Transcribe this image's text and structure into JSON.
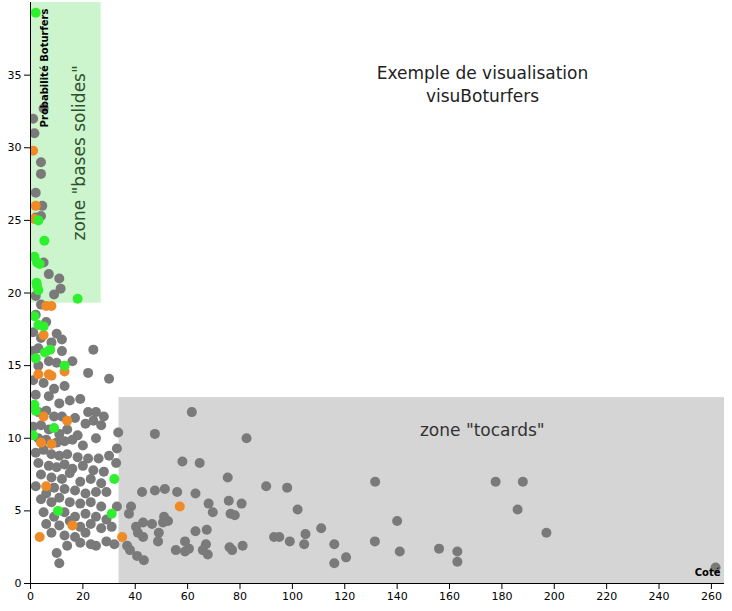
{
  "chart_data": {
    "type": "scatter",
    "title": "Exemple de visualisation",
    "subtitle": "visuBoturfers",
    "x_label": "Coté",
    "y_label": "Probabilité Boturfers",
    "xlim": [
      0,
      265
    ],
    "xticks": [
      0,
      20,
      40,
      60,
      80,
      100,
      120,
      140,
      160,
      180,
      200,
      220,
      240,
      260
    ],
    "ylim": [
      0,
      40
    ],
    "yticks": [
      0,
      5,
      10,
      15,
      20,
      25,
      30,
      35
    ],
    "marker": "circle",
    "zones": [
      {
        "text": "zone \"bases solides\"",
        "x1": 0,
        "x2": 27,
        "y1": 19.3,
        "y2": 40,
        "color": "#cdf5cd"
      },
      {
        "text": "zone \"tocards\"",
        "x1": 33.8,
        "x2": 265,
        "y1": 0,
        "y2": 12.8,
        "color": "#d5d5d5"
      }
    ],
    "series": [
      {
        "color": "#7a7a7a",
        "x": [
          47.5,
          61.6,
          82.5,
          58,
          64.6,
          75.3,
          90,
          98,
          131.6,
          177.6,
          188,
          186,
          197,
          261.6,
          140,
          131.5,
          141,
          156,
          163,
          163,
          116,
          111,
          104.5,
          102,
          105,
          99,
          93,
          95,
          116,
          120.5,
          76.4,
          78,
          75.7,
          80.6,
          76,
          77,
          81,
          69.6,
          67.3,
          67,
          65.8,
          67.7,
          63,
          60.5,
          59,
          55.5,
          48.7,
          51,
          52.5,
          50.6,
          46.4,
          49,
          42.6,
          47.5,
          51.3,
          56,
          63,
          68,
          59,
          43,
          40.3,
          43,
          43.3,
          38.4,
          37.6,
          36.9,
          38,
          40.7,
          41,
          33.5,
          33,
          32.7,
          1,
          5,
          1.5,
          4,
          4,
          2,
          4.5,
          4,
          2,
          11,
          11.5,
          9,
          5,
          7,
          2,
          4,
          2,
          6,
          1,
          4,
          10,
          12,
          8,
          1,
          3,
          12,
          24,
          3,
          7,
          10,
          16,
          1,
          5,
          9,
          13,
          22,
          30,
          2,
          7,
          11,
          15,
          19,
          3,
          6,
          9,
          12,
          17,
          22,
          25,
          28,
          1,
          4,
          7,
          11,
          14,
          18,
          21,
          24,
          27,
          3,
          6,
          10,
          13,
          16,
          20,
          25,
          2,
          5,
          8,
          11,
          14,
          18,
          22,
          26,
          30,
          3,
          7,
          10,
          13,
          16,
          20,
          24,
          28,
          4,
          8,
          12,
          15,
          19,
          23,
          27,
          2,
          6,
          9,
          13,
          17,
          21,
          25,
          29,
          4,
          8,
          11,
          15,
          19,
          23,
          27,
          33,
          5,
          9,
          13,
          17,
          21,
          25,
          29,
          6,
          11,
          15,
          19,
          23,
          27,
          31,
          8,
          13,
          17,
          21,
          25,
          29,
          32,
          10,
          14,
          19,
          23,
          11
        ],
        "values": [
          10.3,
          11.8,
          10.0,
          8.4,
          8.3,
          7.3,
          6.7,
          6.6,
          7.0,
          7.0,
          7.0,
          5.1,
          3.5,
          1.1,
          4.3,
          2.9,
          2.2,
          2.4,
          2.2,
          1.5,
          2.7,
          3.8,
          2.7,
          5.1,
          3.4,
          2.9,
          3.2,
          3.2,
          1.4,
          1.8,
          4.8,
          4.7,
          5.7,
          5.5,
          2.5,
          2.3,
          2.6,
          4.9,
          3.7,
          2.7,
          2.3,
          2.0,
          3.6,
          2.4,
          2.2,
          2.3,
          2.9,
          4.6,
          4.3,
          4.2,
          4.1,
          3.5,
          6.3,
          6.4,
          6.5,
          6.3,
          6.2,
          5.5,
          2.9,
          4.2,
          3.9,
          3.2,
          1.6,
          5.3,
          4.8,
          2.6,
          2.3,
          1.9,
          3.5,
          10.4,
          9.3,
          8.3,
          32,
          32.7,
          31,
          29,
          28.2,
          26.9,
          26,
          25.3,
          25.2,
          21,
          20.3,
          19.9,
          22.1,
          21.3,
          19.8,
          19.2,
          18.5,
          18,
          17.3,
          16.9,
          17.2,
          16.8,
          16.6,
          16,
          16.2,
          16,
          16.1,
          15,
          15.3,
          15.2,
          15.3,
          14,
          13.8,
          13.4,
          13.6,
          14.5,
          14.1,
          13,
          12.9,
          12.4,
          12.6,
          12.7,
          11.8,
          11.9,
          11.5,
          11.5,
          11.4,
          11.8,
          11.8,
          11.5,
          10.8,
          10.9,
          10.6,
          10.3,
          10.6,
          10.2,
          11,
          11.2,
          10.9,
          10,
          9.9,
          9.7,
          9.8,
          9.9,
          9.5,
          10,
          9,
          9.2,
          8.9,
          8.8,
          8.9,
          8.7,
          8.6,
          8.6,
          8.8,
          8.3,
          8.1,
          8,
          8.2,
          7.9,
          8.1,
          7.8,
          7.7,
          7.5,
          7.3,
          7.2,
          7.6,
          7.0,
          7.2,
          6.9,
          6.7,
          6.2,
          6.6,
          6.5,
          6.4,
          6.2,
          6.3,
          6.3,
          5.8,
          5.6,
          5.9,
          5.6,
          5.5,
          5.6,
          5.3,
          5.3,
          4.9,
          4.6,
          4.9,
          4.6,
          4.8,
          4.6,
          4.4,
          4.1,
          4.0,
          4.3,
          3.9,
          4.1,
          3.8,
          3.9,
          3.5,
          3.3,
          3.2,
          3.5,
          2.6,
          2.9,
          2.7,
          2.1,
          2.6,
          2.8,
          2.7,
          1.4
        ]
      },
      {
        "color": "#f08a24",
        "x": [
          1,
          2,
          1.5,
          6,
          8,
          5,
          3,
          13,
          7,
          8,
          5,
          14,
          4,
          8,
          6,
          3.5,
          16,
          35,
          57
        ],
        "values": [
          29.8,
          26,
          25.1,
          19.1,
          19.1,
          17.1,
          14.4,
          14.6,
          14.4,
          14.3,
          11.5,
          11.2,
          9.7,
          9.6,
          6.7,
          3.2,
          4.0,
          3.2,
          5.3
        ]
      },
      {
        "color": "#2ef02e",
        "x": [
          2,
          5.3,
          1.5,
          2.5,
          3.5,
          2.3,
          3,
          18,
          1.5,
          3,
          5,
          7.5,
          5.5,
          2,
          13,
          1.5,
          2,
          1,
          9,
          10.5,
          31,
          32,
          3,
          2.5
        ],
        "values": [
          39.3,
          23.6,
          22.5,
          22.1,
          22,
          20.7,
          20.2,
          19.6,
          18.4,
          17.8,
          17.7,
          16.1,
          15.9,
          15.5,
          15.0,
          12.3,
          11.9,
          10.2,
          10.7,
          5.0,
          4.8,
          7.2,
          25,
          20.5
        ]
      }
    ]
  }
}
